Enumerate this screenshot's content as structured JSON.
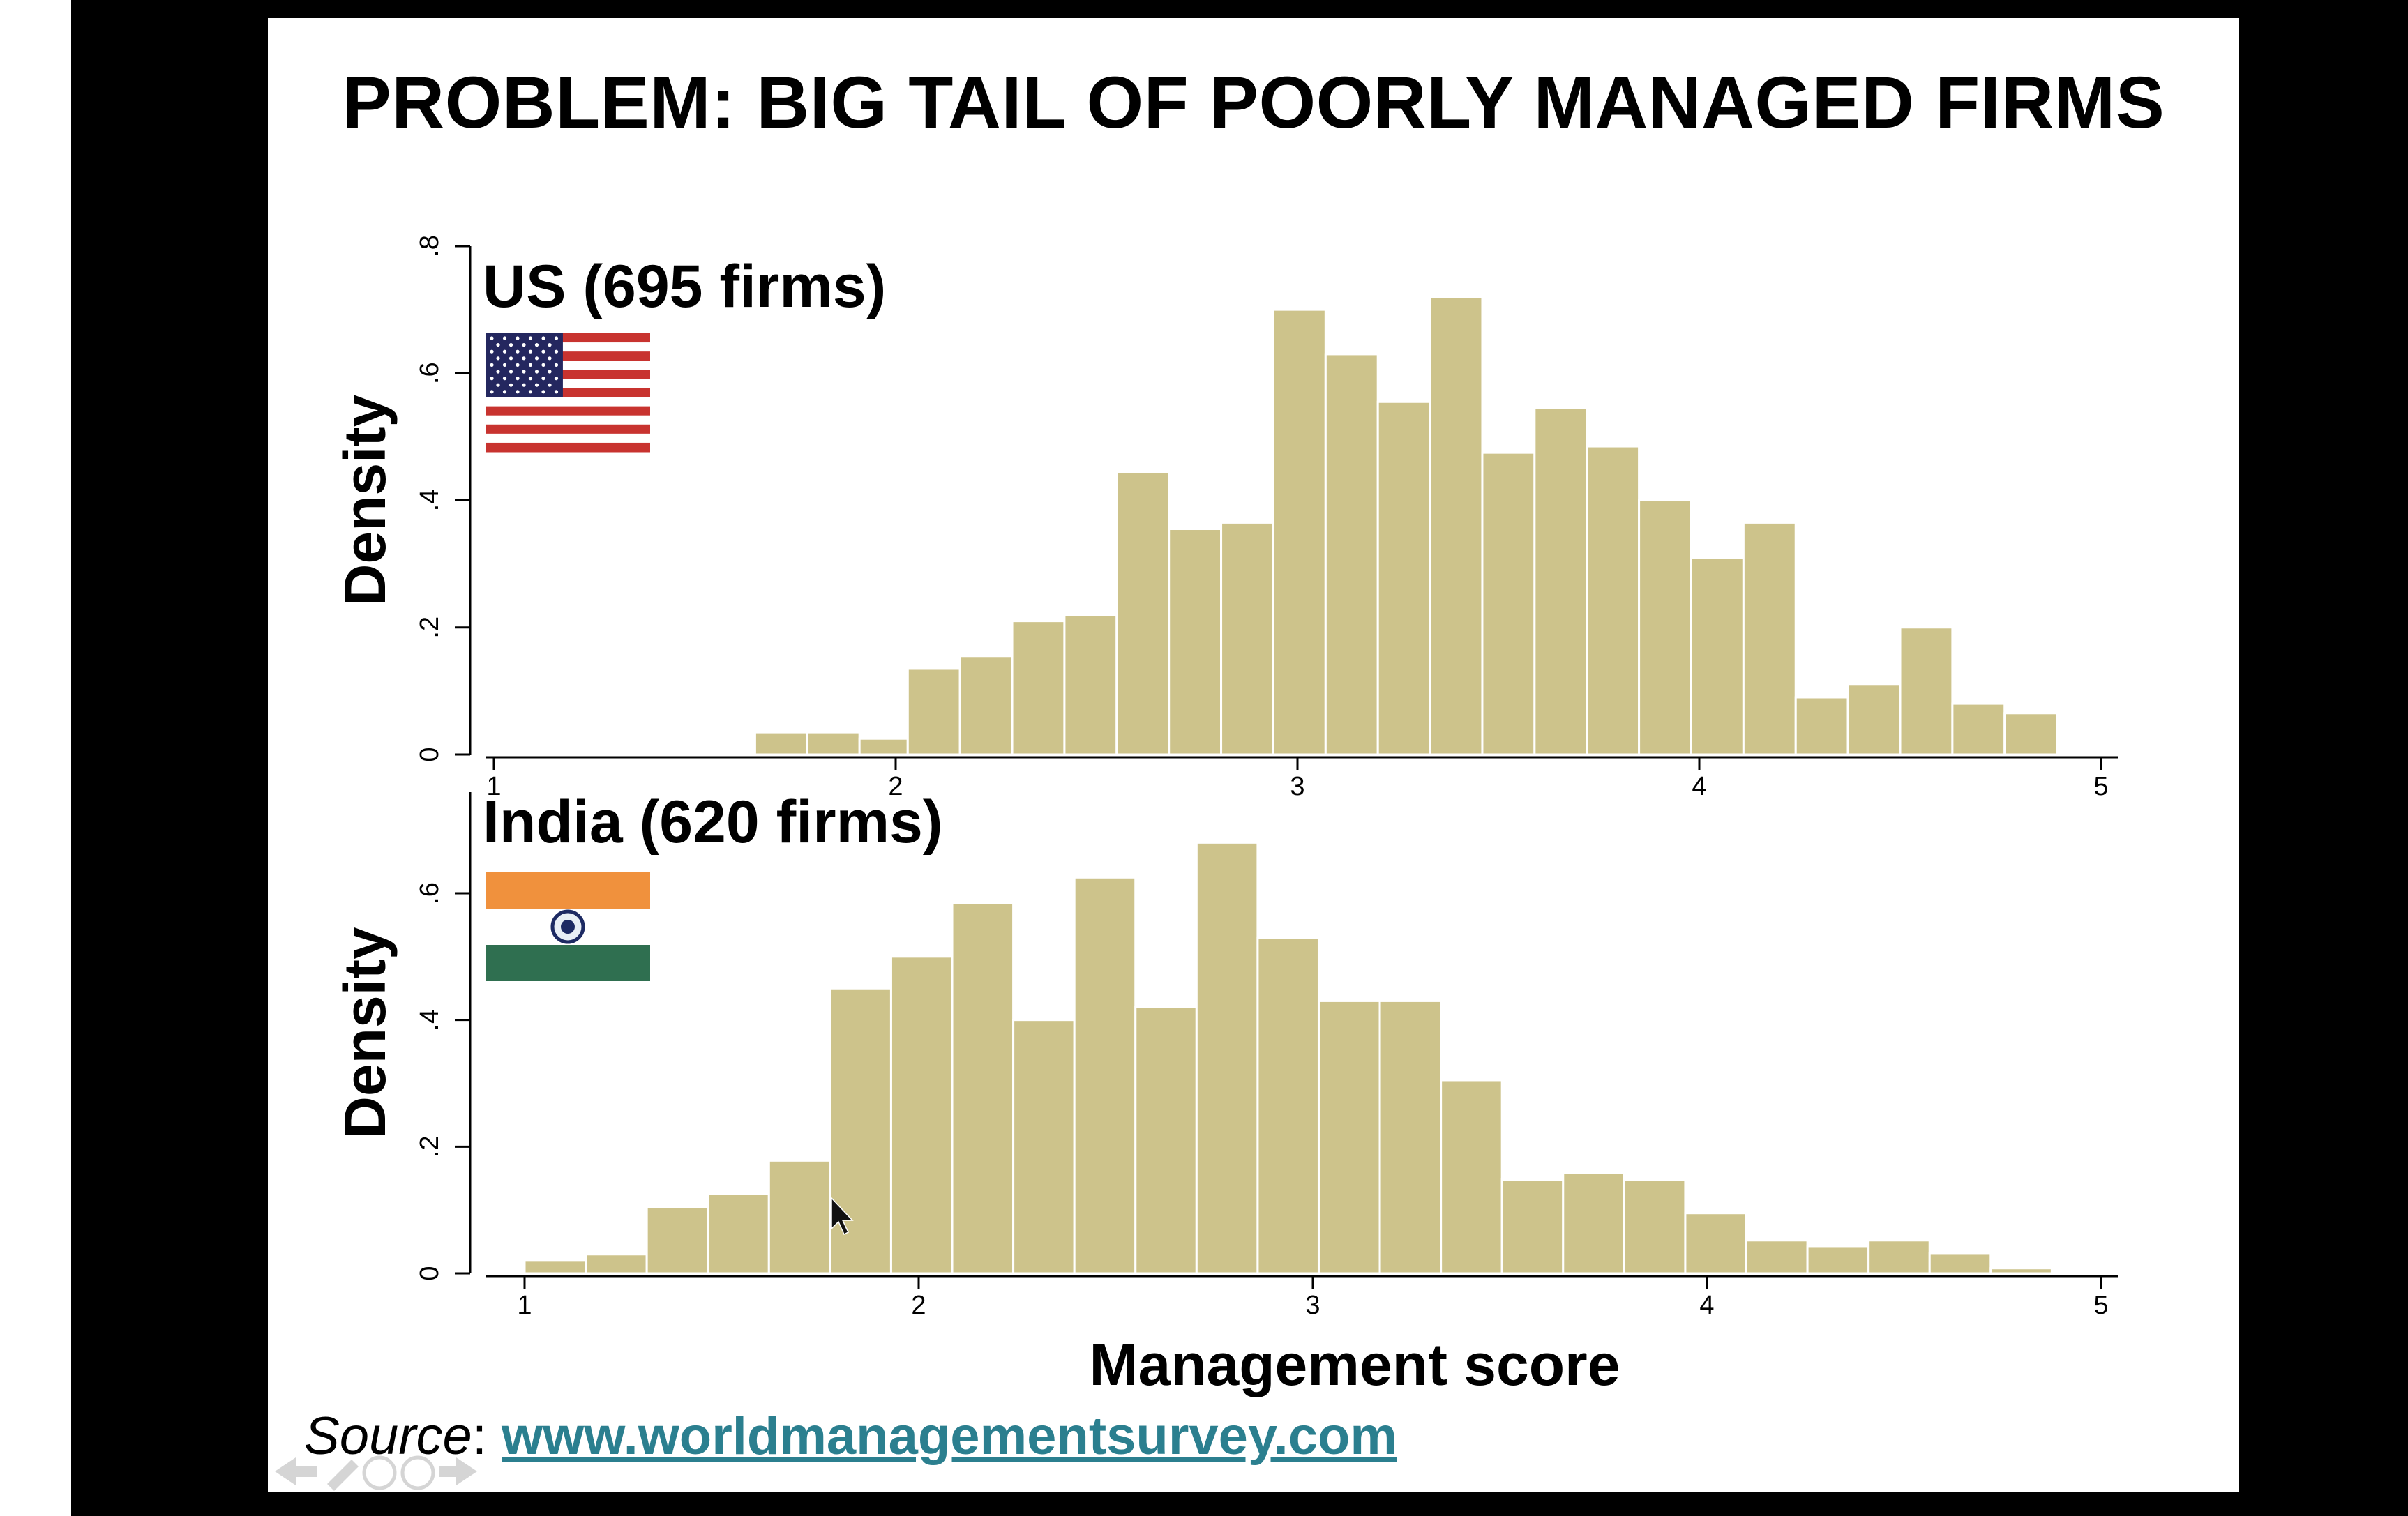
{
  "slide": {
    "title": "PROBLEM: BIG TAIL OF POORLY MANAGED FIRMS",
    "source_label": "Source",
    "source_sep": ": ",
    "source_link": "www.worldmanagementsurvey.com"
  },
  "colors": {
    "bar": "#cdc38b",
    "link": "#2b7f8f",
    "frame": "#000000"
  },
  "icons": [
    "us-flag-icon",
    "india-flag-icon",
    "back-arrow-icon",
    "pen-icon",
    "menu-icon",
    "forward-arrow-icon"
  ],
  "chart_data": [
    {
      "type": "bar",
      "title": "US (695 firms)",
      "ylabel": "Density",
      "xlabel": "",
      "xlim": [
        1,
        5
      ],
      "ylim": [
        0,
        0.8
      ],
      "xticks": [
        "1",
        "2",
        "3",
        "4",
        "5"
      ],
      "yticks": [
        "0",
        ".2",
        ".4",
        ".6",
        ".8"
      ],
      "bins": [
        {
          "x0": 1.65,
          "x1": 1.78,
          "value": 0.035
        },
        {
          "x0": 1.78,
          "x1": 1.91,
          "value": 0.035
        },
        {
          "x0": 1.91,
          "x1": 2.03,
          "value": 0.025
        },
        {
          "x0": 2.03,
          "x1": 2.16,
          "value": 0.135
        },
        {
          "x0": 2.16,
          "x1": 2.29,
          "value": 0.155
        },
        {
          "x0": 2.29,
          "x1": 2.42,
          "value": 0.21
        },
        {
          "x0": 2.42,
          "x1": 2.55,
          "value": 0.22
        },
        {
          "x0": 2.55,
          "x1": 2.68,
          "value": 0.445
        },
        {
          "x0": 2.68,
          "x1": 2.81,
          "value": 0.355
        },
        {
          "x0": 2.81,
          "x1": 2.94,
          "value": 0.365
        },
        {
          "x0": 2.94,
          "x1": 3.07,
          "value": 0.7
        },
        {
          "x0": 3.07,
          "x1": 3.2,
          "value": 0.63
        },
        {
          "x0": 3.2,
          "x1": 3.33,
          "value": 0.555
        },
        {
          "x0": 3.33,
          "x1": 3.46,
          "value": 0.72
        },
        {
          "x0": 3.46,
          "x1": 3.59,
          "value": 0.475
        },
        {
          "x0": 3.59,
          "x1": 3.72,
          "value": 0.545
        },
        {
          "x0": 3.72,
          "x1": 3.85,
          "value": 0.485
        },
        {
          "x0": 3.85,
          "x1": 3.98,
          "value": 0.4
        },
        {
          "x0": 3.98,
          "x1": 4.11,
          "value": 0.31
        },
        {
          "x0": 4.11,
          "x1": 4.24,
          "value": 0.365
        },
        {
          "x0": 4.24,
          "x1": 4.37,
          "value": 0.09
        },
        {
          "x0": 4.37,
          "x1": 4.5,
          "value": 0.11
        },
        {
          "x0": 4.5,
          "x1": 4.63,
          "value": 0.2
        },
        {
          "x0": 4.63,
          "x1": 4.76,
          "value": 0.08
        },
        {
          "x0": 4.76,
          "x1": 4.89,
          "value": 0.065
        }
      ]
    },
    {
      "type": "bar",
      "title": "India (620 firms)",
      "ylabel": "Density",
      "xlabel": "Management score",
      "xlim": [
        1,
        5
      ],
      "ylim": [
        0,
        0.75
      ],
      "xticks": [
        "1",
        "2",
        "3",
        "4",
        "5"
      ],
      "yticks": [
        "0",
        ".2",
        ".4",
        ".6"
      ],
      "bins": [
        {
          "x0": 1.0,
          "x1": 1.155,
          "value": 0.02
        },
        {
          "x0": 1.155,
          "x1": 1.31,
          "value": 0.03
        },
        {
          "x0": 1.31,
          "x1": 1.465,
          "value": 0.105
        },
        {
          "x0": 1.465,
          "x1": 1.62,
          "value": 0.125
        },
        {
          "x0": 1.62,
          "x1": 1.775,
          "value": 0.178
        },
        {
          "x0": 1.775,
          "x1": 1.93,
          "value": 0.45
        },
        {
          "x0": 1.93,
          "x1": 2.085,
          "value": 0.5
        },
        {
          "x0": 2.085,
          "x1": 2.24,
          "value": 0.585
        },
        {
          "x0": 2.24,
          "x1": 2.395,
          "value": 0.4
        },
        {
          "x0": 2.395,
          "x1": 2.55,
          "value": 0.625
        },
        {
          "x0": 2.55,
          "x1": 2.705,
          "value": 0.42
        },
        {
          "x0": 2.705,
          "x1": 2.86,
          "value": 0.68
        },
        {
          "x0": 2.86,
          "x1": 3.015,
          "value": 0.53
        },
        {
          "x0": 3.015,
          "x1": 3.17,
          "value": 0.43
        },
        {
          "x0": 3.17,
          "x1": 3.325,
          "value": 0.43
        },
        {
          "x0": 3.325,
          "x1": 3.48,
          "value": 0.305
        },
        {
          "x0": 3.48,
          "x1": 3.635,
          "value": 0.148
        },
        {
          "x0": 3.635,
          "x1": 3.79,
          "value": 0.158
        },
        {
          "x0": 3.79,
          "x1": 3.945,
          "value": 0.148
        },
        {
          "x0": 3.945,
          "x1": 4.1,
          "value": 0.095
        },
        {
          "x0": 4.1,
          "x1": 4.255,
          "value": 0.052
        },
        {
          "x0": 4.255,
          "x1": 4.41,
          "value": 0.043
        },
        {
          "x0": 4.41,
          "x1": 4.565,
          "value": 0.052
        },
        {
          "x0": 4.565,
          "x1": 4.72,
          "value": 0.032
        },
        {
          "x0": 4.72,
          "x1": 4.875,
          "value": 0.008
        }
      ]
    }
  ]
}
